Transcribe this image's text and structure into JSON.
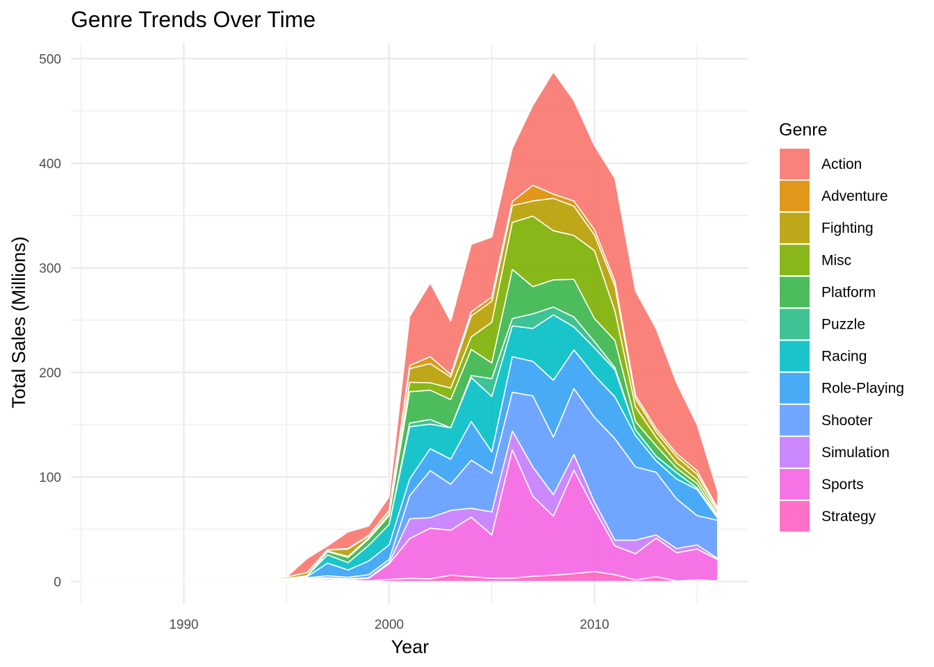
{
  "chart_data": {
    "type": "area",
    "stacked": true,
    "title": "Genre Trends Over Time",
    "xlabel": "Year",
    "ylabel": "Total Sales (Millions)",
    "xlim": [
      1984.5,
      2017.5
    ],
    "ylim": [
      -22,
      515
    ],
    "x_ticks": [
      1990,
      2000,
      2010
    ],
    "y_ticks": [
      0,
      100,
      200,
      300,
      400,
      500
    ],
    "grid": true,
    "legend": {
      "title": "Genre",
      "position": "right"
    },
    "x": [
      1985,
      1986,
      1987,
      1988,
      1989,
      1990,
      1991,
      1992,
      1993,
      1994,
      1995,
      1996,
      1997,
      1998,
      1999,
      2000,
      2001,
      2002,
      2003,
      2004,
      2005,
      2006,
      2007,
      2008,
      2009,
      2010,
      2011,
      2012,
      2013,
      2014,
      2015,
      2016
    ],
    "series": [
      {
        "name": "Strategy",
        "color": "#FF61C3",
        "values": [
          0,
          0,
          0,
          0,
          0,
          0,
          0,
          0,
          0.2,
          0.3,
          0.3,
          1,
          1,
          1,
          0.5,
          2,
          3,
          2.5,
          6,
          4.5,
          3,
          3,
          5,
          6,
          7.5,
          9.5,
          6.5,
          1.5,
          4.5,
          0.5,
          1.5,
          0.5
        ]
      },
      {
        "name": "Sports",
        "color": "#F564E3",
        "values": [
          0,
          0,
          0,
          0,
          0,
          0,
          0,
          0.1,
          0.2,
          0.3,
          0.5,
          1,
          1.5,
          1,
          2.5,
          15,
          38,
          48.5,
          43,
          57,
          41.5,
          123,
          76.5,
          56.5,
          99,
          59.5,
          27.5,
          25,
          37,
          27,
          29.5,
          20.5
        ]
      },
      {
        "name": "Simulation",
        "color": "#C77CFF",
        "values": [
          0,
          0,
          0,
          0,
          0,
          0,
          0,
          0.1,
          0.1,
          0.3,
          0.5,
          1,
          1,
          0.5,
          0.5,
          1,
          19,
          10,
          19,
          8.5,
          22,
          18,
          28,
          20.5,
          15,
          7,
          5.5,
          13,
          3,
          4,
          4,
          1
        ]
      },
      {
        "name": "Shooter",
        "color": "#619CFF",
        "values": [
          0,
          0,
          0,
          0,
          0,
          0,
          0,
          0,
          0,
          0.2,
          0.5,
          0.5,
          2,
          1.5,
          3,
          3,
          22,
          45,
          25,
          46,
          37,
          37,
          68,
          55,
          63,
          81,
          97,
          70,
          60,
          47.5,
          28,
          36.5
        ]
      },
      {
        "name": "Role-Playing",
        "color": "#35A2F4",
        "values": [
          0,
          0,
          0,
          0,
          0,
          0,
          0,
          0,
          0,
          0.2,
          0.5,
          1,
          12,
          7,
          13,
          14,
          16,
          21,
          24,
          37,
          20.5,
          34,
          33,
          54.5,
          37,
          40,
          40,
          30,
          11,
          19,
          25,
          2
        ]
      },
      {
        "name": "Racing",
        "color": "#00BFC4",
        "values": [
          0,
          0,
          0,
          0,
          0,
          0,
          0,
          0,
          0,
          0,
          0.5,
          1,
          8,
          7,
          15,
          19.5,
          50,
          23.5,
          30,
          42,
          53,
          29.5,
          31.5,
          62.5,
          22,
          26.5,
          26,
          5.5,
          4.5,
          6,
          1.5,
          2
        ]
      },
      {
        "name": "Puzzle",
        "color": "#2BBD88",
        "values": [
          0,
          0,
          0,
          0,
          0,
          0,
          0,
          0,
          0,
          0,
          0,
          0,
          0,
          0,
          0,
          0,
          3.5,
          4.5,
          0,
          2,
          17,
          7,
          14,
          7.5,
          9.5,
          6,
          2,
          0,
          0,
          0,
          0,
          0
        ]
      },
      {
        "name": "Platform",
        "color": "#39B54A",
        "values": [
          0,
          0,
          0,
          0,
          0,
          0,
          0,
          0,
          0,
          0,
          0,
          0,
          3,
          5,
          6,
          8.5,
          30,
          28,
          27,
          25,
          15,
          47,
          26,
          26,
          36,
          22,
          26,
          8,
          10,
          4.5,
          4,
          1.5
        ]
      },
      {
        "name": "Misc",
        "color": "#7CAE00",
        "values": [
          0,
          0,
          0,
          0,
          0,
          0,
          0,
          0,
          0,
          0,
          0,
          0,
          0.5,
          1,
          1,
          1.5,
          9,
          7,
          11,
          12,
          39,
          45,
          67.5,
          47,
          42,
          65,
          28,
          14,
          8,
          5,
          4,
          3
        ]
      },
      {
        "name": "Fighting",
        "color": "#B79F00",
        "values": [
          0,
          0,
          0,
          0,
          0,
          0.1,
          0.2,
          0.3,
          0.5,
          0.8,
          1.5,
          3,
          1,
          7,
          2,
          3,
          13,
          18.5,
          10.5,
          20,
          20,
          16,
          14.5,
          31,
          28,
          15,
          24,
          8,
          5.5,
          6,
          5,
          2
        ]
      },
      {
        "name": "Adventure",
        "color": "#DE8C00",
        "values": [
          0,
          0,
          0,
          0,
          0,
          0,
          0,
          0,
          0,
          0,
          0,
          0,
          0.5,
          0.5,
          0.5,
          0.5,
          3,
          6.5,
          2.5,
          4,
          4,
          4,
          15,
          4,
          5,
          5,
          4.5,
          3,
          3,
          3,
          3.5,
          1
        ]
      },
      {
        "name": "Action",
        "color": "#F8766D",
        "values": [
          0,
          0,
          0,
          0,
          0,
          0,
          0,
          0,
          0,
          0,
          0,
          13.5,
          3.5,
          16,
          9,
          13,
          47,
          70.5,
          51,
          64.5,
          57.5,
          51,
          76.5,
          117,
          96,
          80.5,
          98.5,
          100,
          95.5,
          67.5,
          44,
          16
        ]
      }
    ],
    "legend_entries": [
      "Action",
      "Adventure",
      "Fighting",
      "Misc",
      "Platform",
      "Puzzle",
      "Racing",
      "Role-Playing",
      "Shooter",
      "Simulation",
      "Sports",
      "Strategy"
    ]
  }
}
